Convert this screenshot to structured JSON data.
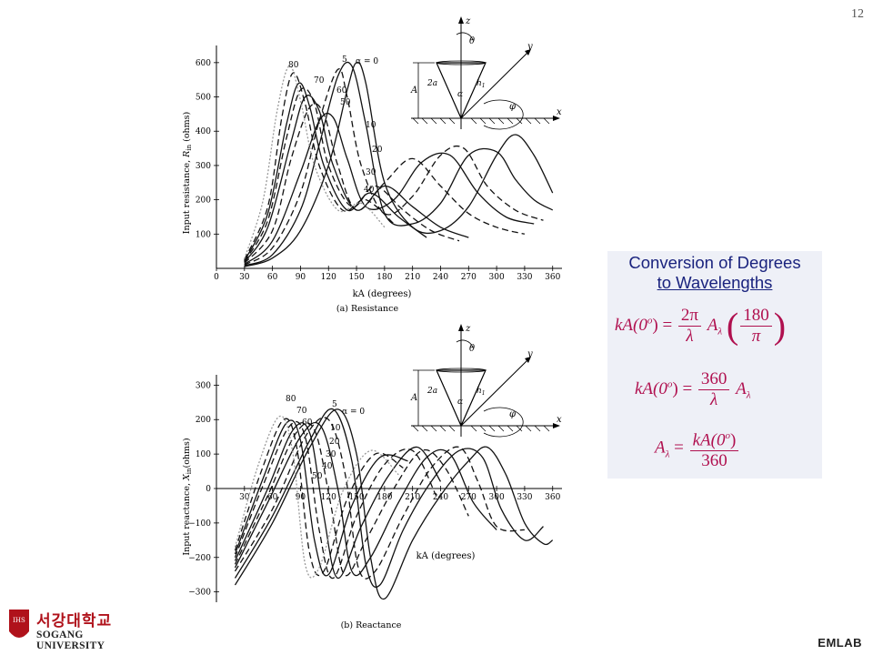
{
  "page": {
    "number": "12",
    "footer": "EMLAB"
  },
  "logo": {
    "korean": "서강대학교",
    "english": "SOGANG UNIVERSITY",
    "shield_text": "IHS"
  },
  "conversion": {
    "title_line1": "Conversion of Degrees",
    "title_line2": "to Wavelengths",
    "f1_lhs": "kA(0",
    "f1_sup": "o",
    "f1_eq": ") =",
    "f1_num": "2π",
    "f1_den": "λ",
    "f1_A": "A",
    "f1_sub": "λ",
    "f1_num2": "180",
    "f1_den2": "π",
    "f2_lhs": "kA(0",
    "f2_sup": "o",
    "f2_eq": ") =",
    "f2_num": "360",
    "f2_den": "λ",
    "f2_A": "A",
    "f2_sub": "λ",
    "f3_A": "A",
    "f3_sub": "λ",
    "f3_eq": "=",
    "f3_num": "kA(0",
    "f3_num_sup": "o",
    "f3_num_end": ")",
    "f3_den": "360"
  },
  "diagram": {
    "z": "z",
    "theta": "θ",
    "y": "y",
    "x": "x",
    "phi": "φ",
    "A": "A",
    "two_a": "2a",
    "alpha": "α",
    "h1": "h",
    "h1_sub": "1"
  },
  "chart_data": [
    {
      "type": "line",
      "caption": "(a)  Resistance",
      "xlabel": "kA (degrees)",
      "ylabel": "Input resistance, R_in (ohms)",
      "ylabel_main": "Input resistance, ",
      "ylabel_var": "R",
      "ylabel_sub": "in",
      "ylabel_unit": " (ohms)",
      "xlim": [
        0,
        370
      ],
      "ylim": [
        0,
        650
      ],
      "xticks": [
        "0",
        "30",
        "60",
        "90",
        "120",
        "150",
        "180",
        "210",
        "240",
        "270",
        "300",
        "330",
        "360"
      ],
      "yticks": [
        "100",
        "200",
        "300",
        "400",
        "500",
        "600"
      ],
      "curve_labels": [
        "α = 0",
        "5",
        "10",
        "20",
        "30",
        "40",
        "50",
        "60",
        "70",
        "80"
      ],
      "series": [
        {
          "name": "α = 0",
          "style": "solid",
          "x": [
            30,
            60,
            90,
            120,
            140,
            150,
            160,
            180,
            210,
            240,
            270,
            300,
            320,
            340,
            360
          ],
          "y": [
            5,
            30,
            110,
            300,
            520,
            600,
            540,
            250,
            120,
            110,
            180,
            330,
            390,
            330,
            220
          ]
        },
        {
          "name": "5",
          "style": "solid",
          "x": [
            30,
            60,
            90,
            110,
            130,
            145,
            160,
            180,
            210,
            240,
            270,
            300,
            320,
            340,
            360
          ],
          "y": [
            8,
            40,
            170,
            360,
            560,
            590,
            420,
            160,
            130,
            190,
            330,
            340,
            260,
            200,
            170
          ]
        },
        {
          "name": "10",
          "style": "dashed",
          "x": [
            30,
            60,
            90,
            110,
            130,
            140,
            155,
            180,
            210,
            240,
            265,
            290,
            320,
            350
          ],
          "y": [
            10,
            60,
            220,
            430,
            580,
            500,
            300,
            160,
            210,
            330,
            350,
            240,
            170,
            140
          ]
        },
        {
          "name": "20",
          "style": "solid",
          "x": [
            30,
            60,
            90,
            110,
            125,
            140,
            160,
            190,
            220,
            250,
            280,
            310,
            340
          ],
          "y": [
            12,
            80,
            280,
            430,
            440,
            320,
            180,
            200,
            310,
            330,
            220,
            150,
            130
          ]
        },
        {
          "name": "30",
          "style": "dashed",
          "x": [
            30,
            60,
            80,
            100,
            115,
            130,
            150,
            180,
            210,
            240,
            270,
            300,
            330
          ],
          "y": [
            15,
            110,
            320,
            470,
            450,
            300,
            170,
            250,
            320,
            240,
            160,
            120,
            100
          ]
        },
        {
          "name": "40",
          "style": "solid",
          "x": [
            30,
            55,
            80,
            95,
            110,
            125,
            150,
            180,
            210,
            240,
            270
          ],
          "y": [
            18,
            120,
            370,
            500,
            460,
            300,
            170,
            240,
            180,
            120,
            90
          ]
        },
        {
          "name": "50",
          "style": "dashed",
          "x": [
            30,
            55,
            75,
            90,
            105,
            120,
            145,
            170,
            200,
            230,
            260
          ],
          "y": [
            20,
            140,
            380,
            520,
            480,
            300,
            180,
            240,
            170,
            110,
            80
          ]
        },
        {
          "name": "60",
          "style": "solid",
          "x": [
            30,
            55,
            75,
            88,
            100,
            115,
            140,
            165,
            195,
            225
          ],
          "y": [
            22,
            160,
            420,
            540,
            470,
            300,
            170,
            220,
            150,
            90
          ]
        },
        {
          "name": "70",
          "style": "dashed",
          "x": [
            30,
            55,
            70,
            82,
            95,
            110,
            135,
            160,
            190
          ],
          "y": [
            25,
            180,
            440,
            570,
            480,
            300,
            170,
            200,
            130
          ]
        },
        {
          "name": "80",
          "style": "dotted",
          "x": [
            30,
            50,
            65,
            78,
            90,
            105,
            130,
            155,
            180
          ],
          "y": [
            28,
            200,
            460,
            590,
            490,
            300,
            170,
            190,
            120
          ]
        }
      ]
    },
    {
      "type": "line",
      "caption": "(b)  Reactance",
      "xlabel": "kA (degrees)",
      "ylabel": "Input reactance, X_in (ohms)",
      "ylabel_main": "Input reactance, ",
      "ylabel_var": "X",
      "ylabel_sub": "in",
      "ylabel_unit": "(ohms)",
      "xlim": [
        0,
        370
      ],
      "ylim": [
        -330,
        330
      ],
      "xticks": [
        "30",
        "60",
        "90",
        "120",
        "150",
        "180",
        "210",
        "240",
        "270",
        "300",
        "330",
        "360"
      ],
      "yticks": [
        "300",
        "200",
        "100",
        "0",
        "−100",
        "−200",
        "−300"
      ],
      "curve_labels": [
        "α = 0",
        "5",
        "10",
        "20",
        "30",
        "40",
        "50",
        "60",
        "70",
        "80"
      ],
      "series": [
        {
          "name": "α = 0",
          "style": "solid",
          "x": [
            20,
            60,
            100,
            130,
            150,
            165,
            180,
            210,
            240,
            270,
            290,
            310,
            330,
            350,
            360
          ],
          "y": [
            -280,
            -100,
            120,
            230,
            100,
            -200,
            -320,
            -150,
            -20,
            80,
            120,
            40,
            -100,
            -160,
            -150
          ]
        },
        {
          "name": "5",
          "style": "solid",
          "x": [
            20,
            60,
            100,
            125,
            145,
            160,
            175,
            200,
            230,
            260,
            285,
            305,
            330,
            350
          ],
          "y": [
            -260,
            -80,
            140,
            230,
            80,
            -220,
            -280,
            -120,
            20,
            110,
            90,
            -60,
            -150,
            -110
          ]
        },
        {
          "name": "10",
          "style": "dashed",
          "x": [
            20,
            60,
            95,
            120,
            138,
            152,
            170,
            200,
            230,
            260,
            280,
            300,
            330
          ],
          "y": [
            -240,
            -60,
            150,
            200,
            40,
            -230,
            -240,
            -80,
            60,
            120,
            20,
            -110,
            -120
          ]
        },
        {
          "name": "20",
          "style": "solid",
          "x": [
            20,
            55,
            90,
            112,
            130,
            145,
            165,
            195,
            225,
            250,
            275,
            300
          ],
          "y": [
            -230,
            -40,
            150,
            180,
            0,
            -240,
            -200,
            -40,
            90,
            100,
            -40,
            -120
          ]
        },
        {
          "name": "30",
          "style": "dashed",
          "x": [
            20,
            55,
            85,
            105,
            122,
            137,
            160,
            190,
            220,
            245,
            270
          ],
          "y": [
            -220,
            -20,
            160,
            170,
            -40,
            -250,
            -150,
            0,
            110,
            60,
            -80
          ]
        },
        {
          "name": "40",
          "style": "solid",
          "x": [
            20,
            55,
            82,
            100,
            115,
            130,
            155,
            185,
            215,
            240
          ],
          "y": [
            -210,
            0,
            170,
            160,
            -80,
            -260,
            -110,
            40,
            120,
            20
          ]
        },
        {
          "name": "50",
          "style": "dashed",
          "x": [
            20,
            50,
            78,
            95,
            110,
            125,
            150,
            180,
            210,
            235
          ],
          "y": [
            -200,
            10,
            180,
            150,
            -120,
            -260,
            -80,
            70,
            110,
            -20
          ]
        },
        {
          "name": "60",
          "style": "solid",
          "x": [
            20,
            50,
            75,
            90,
            105,
            120,
            145,
            175,
            205
          ],
          "y": [
            -190,
            30,
            190,
            140,
            -150,
            -250,
            -50,
            90,
            80
          ]
        },
        {
          "name": "70",
          "style": "dashed",
          "x": [
            20,
            48,
            72,
            86,
            100,
            115,
            140,
            170,
            200
          ],
          "y": [
            -180,
            50,
            200,
            120,
            -190,
            -240,
            -30,
            100,
            60
          ]
        },
        {
          "name": "80",
          "style": "dotted",
          "x": [
            20,
            45,
            68,
            82,
            95,
            110,
            135,
            165,
            195
          ],
          "y": [
            -170,
            70,
            210,
            100,
            -220,
            -230,
            -10,
            110,
            40
          ]
        }
      ]
    }
  ]
}
